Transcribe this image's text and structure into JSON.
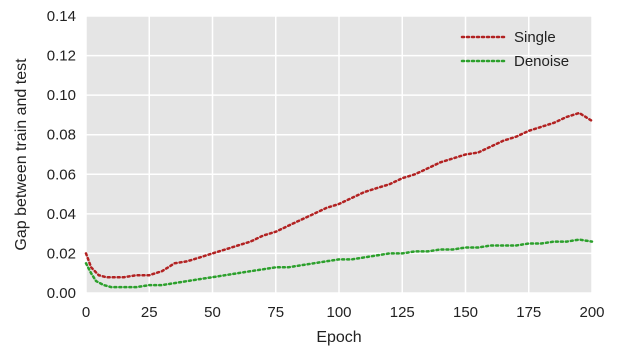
{
  "chart_data": {
    "type": "line",
    "xlabel": "Epoch",
    "ylabel": "Gap between train and test",
    "xlim": [
      0,
      200
    ],
    "ylim": [
      0,
      0.14
    ],
    "xticks": [
      0,
      25,
      50,
      75,
      100,
      125,
      150,
      175,
      200
    ],
    "yticks": [
      "0.00",
      "0.02",
      "0.04",
      "0.06",
      "0.08",
      "0.10",
      "0.12",
      "0.14"
    ],
    "grid": true,
    "legend_position": "top-right",
    "series": [
      {
        "name": "Single",
        "color": "#b22222",
        "linestyle": "dotted",
        "points": [
          [
            0,
            0.02
          ],
          [
            2,
            0.013
          ],
          [
            5,
            0.009
          ],
          [
            8,
            0.008
          ],
          [
            10,
            0.008
          ],
          [
            15,
            0.008
          ],
          [
            20,
            0.009
          ],
          [
            25,
            0.009
          ],
          [
            30,
            0.011
          ],
          [
            35,
            0.015
          ],
          [
            40,
            0.016
          ],
          [
            45,
            0.018
          ],
          [
            50,
            0.02
          ],
          [
            55,
            0.022
          ],
          [
            60,
            0.024
          ],
          [
            65,
            0.026
          ],
          [
            70,
            0.029
          ],
          [
            75,
            0.031
          ],
          [
            80,
            0.034
          ],
          [
            85,
            0.037
          ],
          [
            90,
            0.04
          ],
          [
            95,
            0.043
          ],
          [
            100,
            0.045
          ],
          [
            105,
            0.048
          ],
          [
            110,
            0.051
          ],
          [
            115,
            0.053
          ],
          [
            120,
            0.055
          ],
          [
            125,
            0.058
          ],
          [
            130,
            0.06
          ],
          [
            135,
            0.063
          ],
          [
            140,
            0.066
          ],
          [
            145,
            0.068
          ],
          [
            150,
            0.07
          ],
          [
            155,
            0.071
          ],
          [
            160,
            0.074
          ],
          [
            165,
            0.077
          ],
          [
            170,
            0.079
          ],
          [
            175,
            0.082
          ],
          [
            180,
            0.084
          ],
          [
            185,
            0.086
          ],
          [
            190,
            0.089
          ],
          [
            195,
            0.091
          ],
          [
            200,
            0.087
          ]
        ]
      },
      {
        "name": "Denoise",
        "color": "#2ca02c",
        "linestyle": "dotted",
        "points": [
          [
            0,
            0.015
          ],
          [
            2,
            0.01
          ],
          [
            4,
            0.006
          ],
          [
            7,
            0.004
          ],
          [
            10,
            0.003
          ],
          [
            15,
            0.003
          ],
          [
            20,
            0.003
          ],
          [
            25,
            0.004
          ],
          [
            30,
            0.004
          ],
          [
            35,
            0.005
          ],
          [
            40,
            0.006
          ],
          [
            45,
            0.007
          ],
          [
            50,
            0.008
          ],
          [
            55,
            0.009
          ],
          [
            60,
            0.01
          ],
          [
            65,
            0.011
          ],
          [
            70,
            0.012
          ],
          [
            75,
            0.013
          ],
          [
            80,
            0.013
          ],
          [
            85,
            0.014
          ],
          [
            90,
            0.015
          ],
          [
            95,
            0.016
          ],
          [
            100,
            0.017
          ],
          [
            105,
            0.017
          ],
          [
            110,
            0.018
          ],
          [
            115,
            0.019
          ],
          [
            120,
            0.02
          ],
          [
            125,
            0.02
          ],
          [
            130,
            0.021
          ],
          [
            135,
            0.021
          ],
          [
            140,
            0.022
          ],
          [
            145,
            0.022
          ],
          [
            150,
            0.023
          ],
          [
            155,
            0.023
          ],
          [
            160,
            0.024
          ],
          [
            165,
            0.024
          ],
          [
            170,
            0.024
          ],
          [
            175,
            0.025
          ],
          [
            180,
            0.025
          ],
          [
            185,
            0.026
          ],
          [
            190,
            0.026
          ],
          [
            195,
            0.027
          ],
          [
            200,
            0.026
          ]
        ]
      }
    ]
  }
}
